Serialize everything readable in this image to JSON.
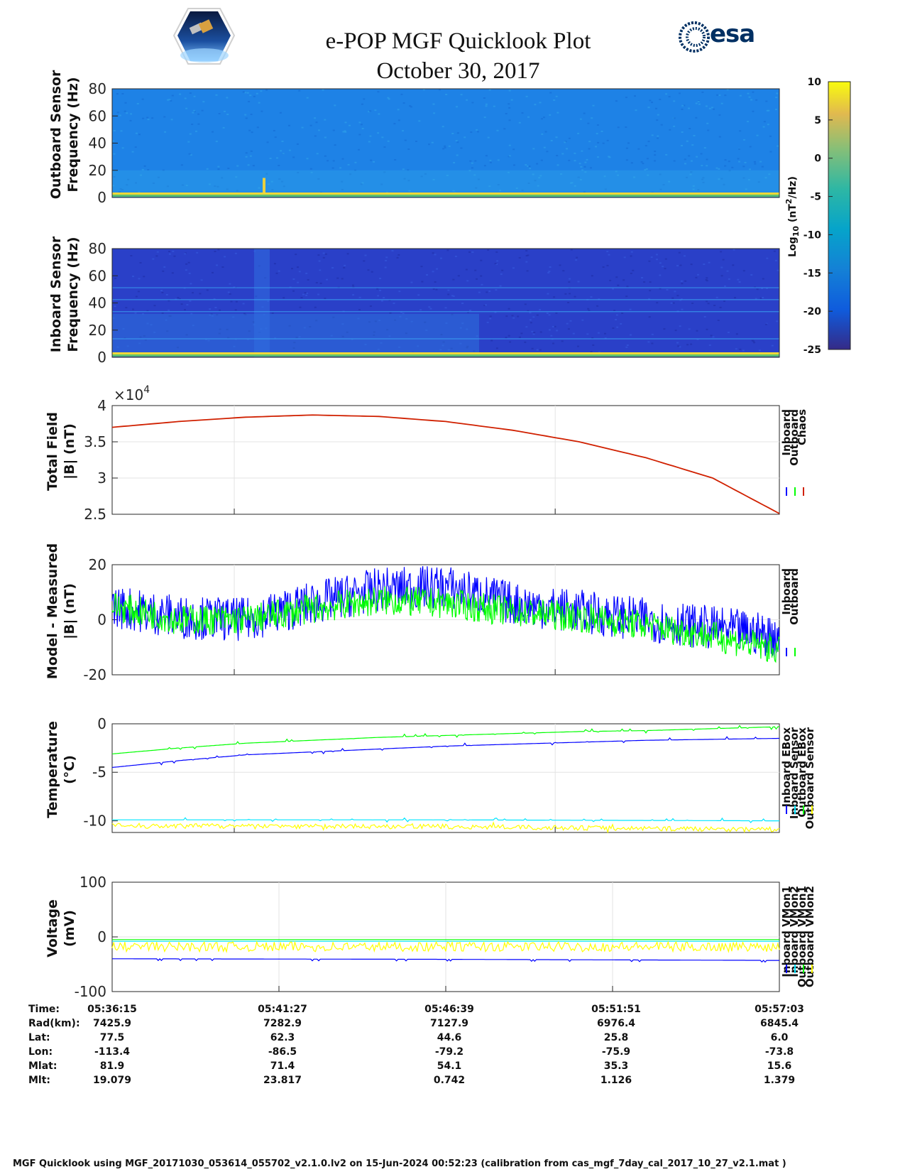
{
  "title": "e-POP MGF Quicklook Plot",
  "date": "October 30, 2017",
  "logo_text": "esa",
  "colors": {
    "inboard": "#0000ff",
    "outboard": "#00ff00",
    "chaos": "#d02000",
    "cyan": "#00e5ff",
    "yellow": "#ffff00"
  },
  "colorbar": {
    "label": "Log10 (nT2/Hz)",
    "ticks": [
      "10",
      "5",
      "0",
      "-5",
      "-10",
      "-15",
      "-20",
      "-25"
    ],
    "colormap": "parula"
  },
  "spectrograms": [
    {
      "ylabel": [
        "Outboard Sensor",
        "Frequency (Hz)"
      ],
      "yticks": [
        "80",
        "60",
        "40",
        "20",
        "0"
      ],
      "ylim": [
        0,
        80
      ],
      "background_color": "#1e82e6"
    },
    {
      "ylabel": [
        "Inboard Sensor",
        "Frequency (Hz)"
      ],
      "yticks": [
        "80",
        "60",
        "40",
        "20",
        "0"
      ],
      "ylim": [
        0,
        80
      ],
      "background_color": "#2a40c8"
    }
  ],
  "chart_data": [
    {
      "type": "line",
      "ylabel": [
        "Total Field",
        "|B| (nT)"
      ],
      "exponent_label": "×10",
      "exponent_power": "4",
      "yticks": [
        "4",
        "3.5",
        "3",
        "2.5"
      ],
      "ylim": [
        2.5,
        4
      ],
      "legend": [
        "Inboard",
        "Outboard",
        "Chaos"
      ],
      "series": [
        {
          "name": "Chaos",
          "color": "#d02000",
          "x": [
            0,
            0.1,
            0.2,
            0.3,
            0.4,
            0.5,
            0.6,
            0.7,
            0.8,
            0.9,
            1.0
          ],
          "values": [
            3.7,
            3.78,
            3.84,
            3.87,
            3.85,
            3.78,
            3.66,
            3.5,
            3.28,
            3.0,
            2.51
          ]
        }
      ]
    },
    {
      "type": "line",
      "ylabel": [
        "Model - Measured",
        "|B| (nT)"
      ],
      "yticks": [
        "20",
        "0",
        "-20"
      ],
      "ylim": [
        -20,
        20
      ],
      "legend": [
        "Inboard",
        "Outboard"
      ],
      "series": [
        {
          "name": "Inboard",
          "color": "#0000ff",
          "x": [
            0,
            0.1,
            0.2,
            0.3,
            0.4,
            0.5,
            0.6,
            0.7,
            0.8,
            0.9,
            1.0
          ],
          "values": [
            5,
            1,
            0,
            6,
            11,
            12,
            6,
            3,
            0,
            -3,
            -6
          ]
        },
        {
          "name": "Outboard",
          "color": "#00ff00",
          "x": [
            0,
            0.1,
            0.2,
            0.3,
            0.4,
            0.5,
            0.6,
            0.7,
            0.8,
            0.9,
            1.0
          ],
          "values": [
            5,
            0,
            0,
            4,
            7,
            6,
            3,
            1,
            -2,
            -6,
            -11
          ]
        }
      ]
    },
    {
      "type": "line",
      "ylabel": [
        "Temperature",
        "(°C)"
      ],
      "yticks": [
        "0",
        "-5",
        "-10"
      ],
      "ylim": [
        -11.2,
        0
      ],
      "legend": [
        "Inboard EBox",
        "Inboard Sensor",
        "Outboard EBox",
        "Outboard Sensor"
      ],
      "series": [
        {
          "name": "Inboard EBox",
          "color": "#0000ff",
          "x": [
            0,
            0.1,
            0.2,
            0.3,
            0.4,
            0.5,
            0.6,
            0.7,
            0.8,
            0.9,
            1.0
          ],
          "values": [
            -4.5,
            -3.8,
            -3.2,
            -2.9,
            -2.6,
            -2.3,
            -2.1,
            -1.9,
            -1.7,
            -1.6,
            -1.5
          ]
        },
        {
          "name": "Inboard Sensor",
          "color": "#00e5ff",
          "x": [
            0,
            0.5,
            1.0
          ],
          "values": [
            -9.9,
            -9.9,
            -10.0
          ]
        },
        {
          "name": "Outboard EBox",
          "color": "#00ff00",
          "x": [
            0,
            0.1,
            0.2,
            0.3,
            0.4,
            0.5,
            0.6,
            0.7,
            0.8,
            0.9,
            1.0
          ],
          "values": [
            -3.1,
            -2.5,
            -2.0,
            -1.7,
            -1.4,
            -1.2,
            -1.0,
            -0.8,
            -0.7,
            -0.5,
            -0.3
          ]
        },
        {
          "name": "Outboard Sensor",
          "color": "#ffff00",
          "x": [
            0,
            0.5,
            1.0
          ],
          "values": [
            -10.5,
            -10.6,
            -10.9
          ]
        }
      ]
    },
    {
      "type": "line",
      "ylabel": [
        "Voltage",
        "(mV)"
      ],
      "yticks": [
        "100",
        "0",
        "-100"
      ],
      "ylim": [
        -100,
        100
      ],
      "legend": [
        "Inboard VMon1",
        "Inboard VMon2",
        "Outboard VMon1",
        "Outboard VMon2"
      ],
      "series": [
        {
          "name": "Inboard VMon1",
          "color": "#0000ff",
          "x": [
            0,
            0.5,
            1.0
          ],
          "values": [
            -40,
            -41,
            -43
          ]
        },
        {
          "name": "Inboard VMon2",
          "color": "#00e5ff",
          "x": [
            0,
            0.5,
            1.0
          ],
          "values": [
            -8,
            -8,
            -8
          ]
        },
        {
          "name": "Outboard VMon1",
          "color": "#00ff00",
          "x": [
            0,
            0.5,
            1.0
          ],
          "values": [
            -5,
            -5,
            -5
          ]
        },
        {
          "name": "Outboard VMon2",
          "color": "#ffff00",
          "x": [
            0,
            0.5,
            1.0
          ],
          "values": [
            -18,
            -18,
            -18
          ]
        }
      ]
    }
  ],
  "ephemeris": {
    "labels": [
      "Time:",
      "Rad(km):",
      "Lat:",
      "Lon:",
      "Mlat:",
      "Mlt:"
    ],
    "columns": [
      [
        "05:36:15",
        "7425.9",
        "77.5",
        "-113.4",
        "81.9",
        "19.079"
      ],
      [
        "05:41:27",
        "7282.9",
        "62.3",
        "-86.5",
        "71.4",
        "23.817"
      ],
      [
        "05:46:39",
        "7127.9",
        "44.6",
        "-79.2",
        "54.1",
        "0.742"
      ],
      [
        "05:51:51",
        "6976.4",
        "25.8",
        "-75.9",
        "35.3",
        "1.126"
      ],
      [
        "05:57:03",
        "6845.4",
        "6.0",
        "-73.8",
        "15.6",
        "1.379"
      ]
    ]
  },
  "footer": "MGF Quicklook using MGF_20171030_053614_055702_v2.1.0.lv2 on 15-Jun-2024 00:52:23 (calibration from cas_mgf_7day_cal_2017_10_27_v2.1.mat )"
}
